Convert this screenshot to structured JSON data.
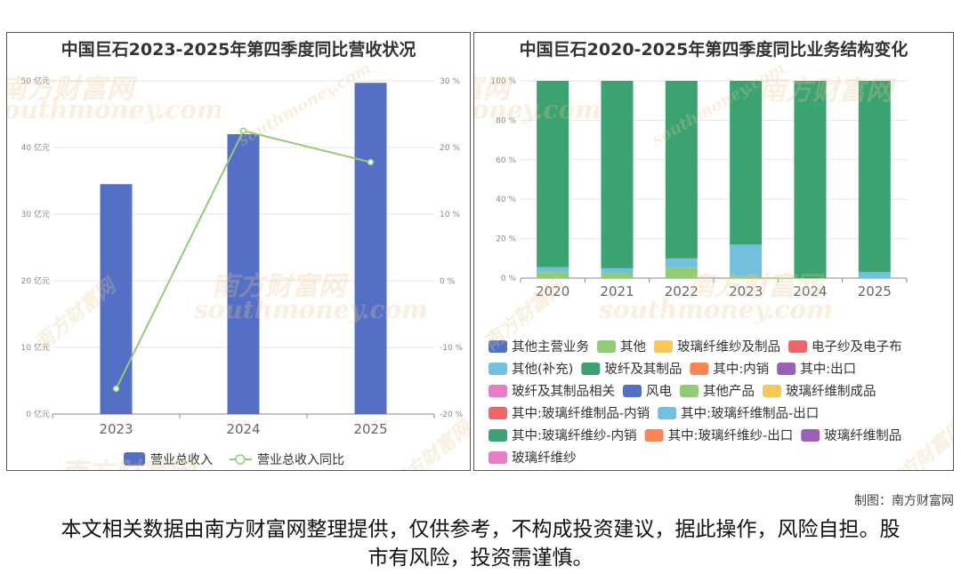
{
  "watermark": {
    "cn": "南方财富网",
    "en": "southmoney.com"
  },
  "chart_data": [
    {
      "type": "bar",
      "title": "中国巨石2023-2025年第四季度同比营收状况",
      "categories": [
        "2023",
        "2024",
        "2025"
      ],
      "series": [
        {
          "name": "营业总收入",
          "kind": "bar",
          "axis": "left",
          "color": "#5470c6",
          "values": [
            34.5,
            42,
            49.7
          ]
        },
        {
          "name": "营业总收入同比",
          "kind": "line",
          "axis": "right",
          "color": "#91cc75",
          "values": [
            -16.2,
            22.5,
            17.8
          ]
        }
      ],
      "y_left": {
        "ticks": [
          "0 亿元",
          "10 亿元",
          "20 亿元",
          "30 亿元",
          "40 亿元",
          "50 亿元"
        ],
        "min": 0,
        "max": 50
      },
      "y_right": {
        "ticks": [
          "-20 %",
          "-10 %",
          "0 %",
          "10 %",
          "20 %",
          "30 %"
        ],
        "min": -20,
        "max": 30
      },
      "grid": true,
      "legend": "bottom"
    },
    {
      "type": "bar",
      "stacked": true,
      "title": "中国巨石2020-2025年第四季度同比业务结构变化",
      "categories": [
        "2020",
        "2021",
        "2022",
        "2023",
        "2024",
        "2025"
      ],
      "y_axis": {
        "ticks": [
          "0 %",
          "20 %",
          "40 %",
          "60 %",
          "80 %",
          "100 %"
        ],
        "min": 0,
        "max": 100
      },
      "series": [
        {
          "name": "其他主营业务",
          "color": "#5470c6",
          "values": [
            0,
            0,
            0,
            0,
            0,
            0
          ]
        },
        {
          "name": "其他",
          "color": "#91cc75",
          "values": [
            3,
            2.5,
            5.5,
            1,
            0,
            0
          ]
        },
        {
          "name": "玻璃纤维纱及制品",
          "color": "#fac858",
          "values": [
            0,
            0,
            0,
            0,
            0,
            0
          ]
        },
        {
          "name": "电子纱及电子布",
          "color": "#ee6666",
          "values": [
            0,
            0,
            0,
            0,
            0,
            0
          ]
        },
        {
          "name": "其他(补充)",
          "color": "#73c0de",
          "values": [
            2.5,
            2.5,
            4.5,
            16,
            0,
            3
          ]
        },
        {
          "name": "玻纤及其制品",
          "color": "#3ba272",
          "values": [
            94.5,
            95,
            90,
            83,
            100,
            97
          ]
        },
        {
          "name": "其中:内销",
          "color": "#fc8452",
          "values": [
            0,
            0,
            0,
            0,
            0,
            0
          ]
        },
        {
          "name": "其中:出口",
          "color": "#9a60b4",
          "values": [
            0,
            0,
            0,
            0,
            0,
            0
          ]
        },
        {
          "name": "玻纤及其制品相关",
          "color": "#ea7ccc",
          "values": [
            0,
            0,
            0,
            0,
            0,
            0
          ]
        },
        {
          "name": "风电",
          "color": "#5470c6",
          "values": [
            0,
            0,
            0,
            0,
            0,
            0
          ]
        },
        {
          "name": "其他产品",
          "color": "#91cc75",
          "values": [
            0,
            0,
            0,
            0,
            0,
            0
          ]
        },
        {
          "name": "玻璃纤维制成品",
          "color": "#fac858",
          "values": [
            0,
            0,
            0,
            0,
            0,
            0
          ]
        },
        {
          "name": "其中:玻璃纤维制品-内销",
          "color": "#ee6666",
          "values": [
            0,
            0,
            0,
            0,
            0,
            0
          ]
        },
        {
          "name": "其中:玻璃纤维制品-出口",
          "color": "#73c0de",
          "values": [
            0,
            0,
            0,
            0,
            0,
            0
          ]
        },
        {
          "name": "其中:玻璃纤维纱-内销",
          "color": "#3ba272",
          "values": [
            0,
            0,
            0,
            0,
            0,
            0
          ]
        },
        {
          "name": "其中:玻璃纤维纱-出口",
          "color": "#fc8452",
          "values": [
            0,
            0,
            0,
            0,
            0,
            0
          ]
        },
        {
          "name": "玻璃纤维制品",
          "color": "#9a60b4",
          "values": [
            0,
            0,
            0,
            0,
            0,
            0
          ]
        },
        {
          "name": "玻璃纤维纱",
          "color": "#ea7ccc",
          "values": [
            0,
            0,
            0,
            0,
            0,
            0
          ]
        }
      ],
      "grid": true,
      "legend": "bottom"
    }
  ],
  "footer": {
    "credit": "制图：南方财富网",
    "disclaimer": "本文相关数据由南方财富网整理提供，仅供参考，不构成投资建议，据此操作，风险自担。股市有风险，投资需谨慎。"
  }
}
